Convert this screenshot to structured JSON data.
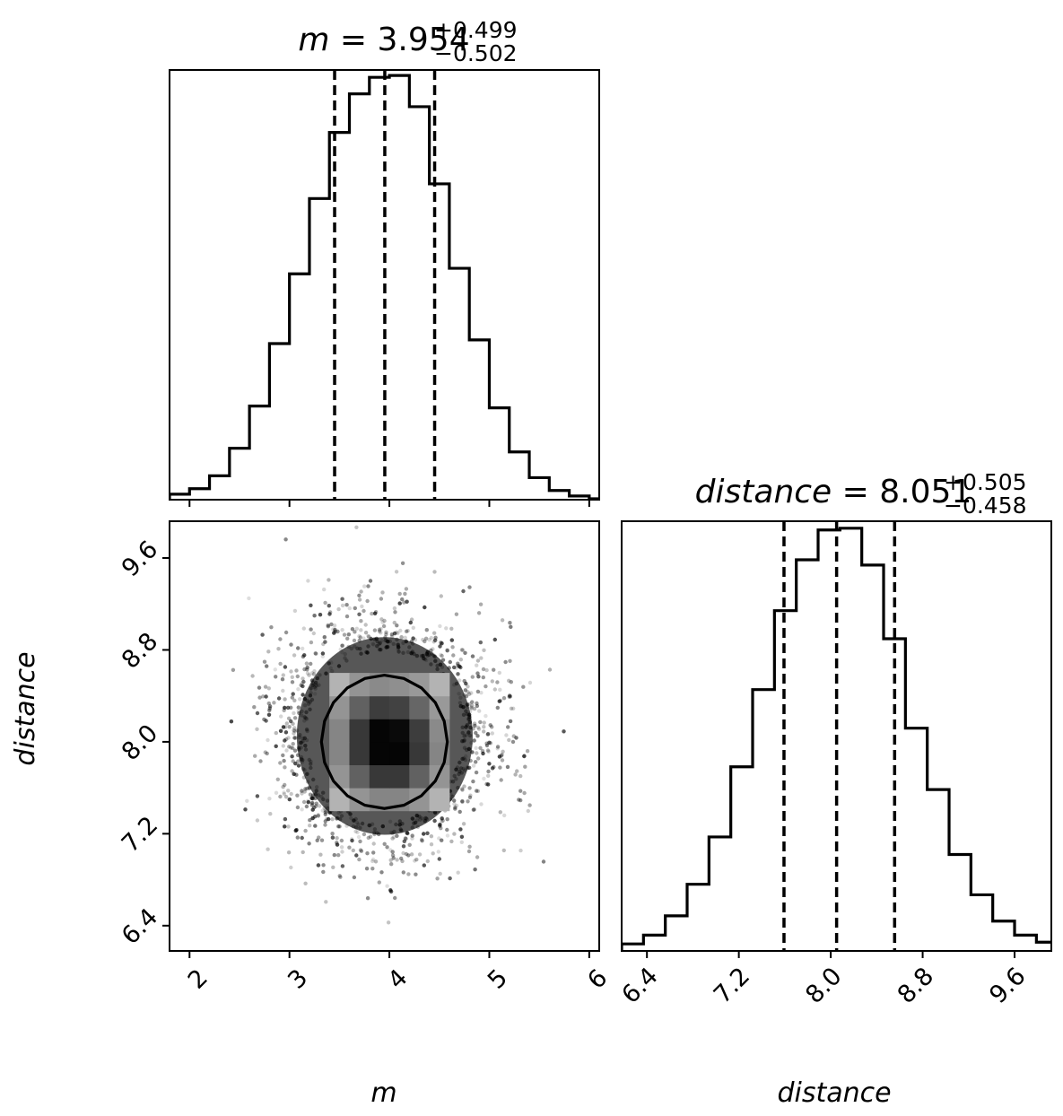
{
  "chart_data": [
    {
      "type": "histogram",
      "panel": "top-left",
      "variable": "m",
      "title": {
        "symbol": "m",
        "eq": " = ",
        "value": "3.954",
        "plus": "+0.499",
        "minus": "−0.502"
      },
      "xlim": [
        1.8,
        6.1
      ],
      "xticks": [
        2,
        3,
        4,
        5,
        6
      ],
      "tick_labels_shown": false,
      "quantile_lines": [
        3.452,
        3.954,
        4.453
      ],
      "bin_edges": [
        1.8,
        2.0,
        2.2,
        2.4,
        2.6,
        2.8,
        3.0,
        3.2,
        3.4,
        3.6,
        3.8,
        4.0,
        4.2,
        4.4,
        4.6,
        4.8,
        5.0,
        5.2,
        5.4,
        5.6,
        5.8,
        6.0,
        6.1
      ],
      "counts": [
        0.3,
        0.6,
        1.3,
        2.8,
        5.1,
        8.5,
        12.3,
        16.4,
        20.0,
        22.1,
        23.0,
        23.1,
        21.4,
        17.2,
        12.6,
        8.7,
        5.0,
        2.6,
        1.2,
        0.5,
        0.2,
        0.05
      ],
      "ylim": [
        0,
        23.4
      ]
    },
    {
      "type": "scatter",
      "panel": "bottom-left",
      "x_variable": "m",
      "y_variable": "distance",
      "xlabel": "m",
      "ylabel": "distance",
      "xlim": [
        1.8,
        6.1
      ],
      "ylim": [
        6.18,
        9.92
      ],
      "xticks": [
        2,
        3,
        4,
        5,
        6
      ],
      "xtick_labels": [
        "2",
        "3",
        "4",
        "5",
        "6"
      ],
      "yticks": [
        6.4,
        7.2,
        8.0,
        8.8,
        9.6
      ],
      "ytick_labels": [
        "6.4",
        "7.2",
        "8.0",
        "8.8",
        "9.6"
      ],
      "center": [
        3.954,
        8.051
      ],
      "spread": [
        0.5,
        0.48
      ],
      "contour": {
        "cx": 3.95,
        "cy": 8.0,
        "rx": 0.63,
        "ry": 0.58
      },
      "density_grid": {
        "x_edges": [
          3.4,
          3.6,
          3.8,
          4.0,
          4.2,
          4.4,
          4.6
        ],
        "y_edges": [
          7.4,
          7.6,
          7.8,
          8.0,
          8.2,
          8.4,
          8.6
        ],
        "shades": [
          [
            0.3,
            0.42,
            0.48,
            0.48,
            0.42,
            0.3
          ],
          [
            0.42,
            0.62,
            0.78,
            0.78,
            0.62,
            0.42
          ],
          [
            0.48,
            0.78,
            0.98,
            0.98,
            0.78,
            0.48
          ],
          [
            0.48,
            0.78,
            0.98,
            0.96,
            0.76,
            0.46
          ],
          [
            0.42,
            0.62,
            0.76,
            0.74,
            0.6,
            0.4
          ],
          [
            0.3,
            0.42,
            0.46,
            0.44,
            0.4,
            0.3
          ]
        ]
      }
    },
    {
      "type": "histogram",
      "panel": "bottom-right",
      "variable": "distance",
      "xlabel": "distance",
      "title": {
        "symbol": "distance",
        "eq": " = ",
        "value": "8.051",
        "plus": "+0.505",
        "minus": "−0.458"
      },
      "xlim": [
        6.18,
        9.92
      ],
      "xticks": [
        6.4,
        7.2,
        8.0,
        8.8,
        9.6
      ],
      "xtick_labels": [
        "6.4",
        "7.2",
        "8.0",
        "8.8",
        "9.6"
      ],
      "quantile_lines": [
        7.593,
        8.051,
        8.556
      ],
      "bin_edges": [
        6.18,
        6.37,
        6.56,
        6.75,
        6.94,
        7.13,
        7.32,
        7.51,
        7.7,
        7.89,
        8.08,
        8.27,
        8.46,
        8.65,
        8.84,
        9.03,
        9.22,
        9.41,
        9.6,
        9.79,
        9.92
      ],
      "counts": [
        0.4,
        0.9,
        2.0,
        3.8,
        6.5,
        10.5,
        14.9,
        19.4,
        22.3,
        24.0,
        24.1,
        22.0,
        17.8,
        12.7,
        9.2,
        5.5,
        3.2,
        1.7,
        0.9,
        0.5
      ],
      "ylim": [
        0,
        24.5
      ]
    }
  ]
}
